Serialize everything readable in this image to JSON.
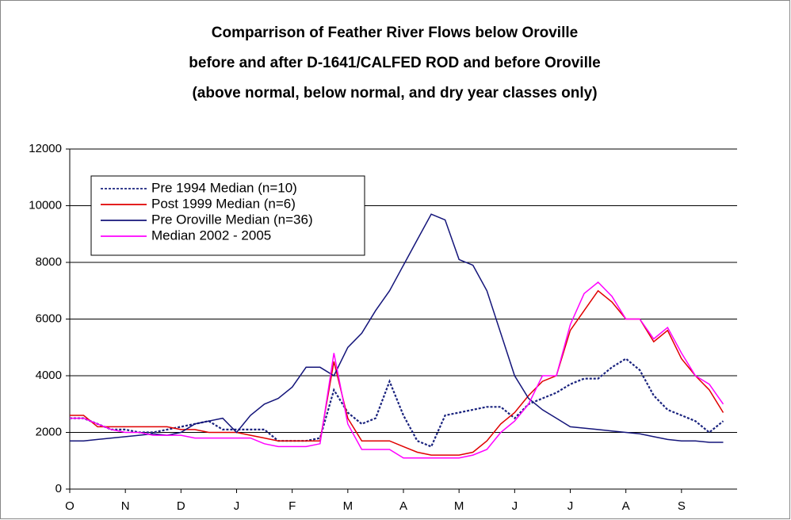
{
  "chart_data": {
    "type": "line",
    "title": "Comparrison of Feather River Flows below Oroville",
    "subtitle": [
      "before and after D-1641/CALFED ROD and before Oroville",
      "(above normal, below normal, and dry year classes only)"
    ],
    "categories": [
      "O",
      null,
      null,
      null,
      "N",
      null,
      null,
      null,
      "D",
      null,
      null,
      null,
      "J",
      null,
      null,
      null,
      "F",
      null,
      null,
      null,
      "M",
      null,
      null,
      null,
      "A",
      null,
      null,
      null,
      "M",
      null,
      null,
      null,
      "J",
      null,
      null,
      null,
      "J",
      null,
      null,
      null,
      "A",
      null,
      null,
      null,
      "S",
      null,
      null,
      null
    ],
    "ylim": [
      0,
      12000
    ],
    "yticks": [
      0,
      2000,
      4000,
      6000,
      8000,
      10000,
      12000
    ],
    "grid": true,
    "legend": "upper-left",
    "series": [
      {
        "name": "Pre 1994 Median (n=10)",
        "color": "#1a237e",
        "line_style": "dotted",
        "values": [
          2500,
          2500,
          2300,
          2100,
          2100,
          2000,
          2000,
          2100,
          2200,
          2300,
          2400,
          2100,
          2100,
          2100,
          2100,
          1700,
          1700,
          1700,
          1800,
          3500,
          2700,
          2300,
          2500,
          3800,
          2600,
          1700,
          1500,
          2600,
          2700,
          2800,
          2900,
          2900,
          2500,
          3000,
          3200,
          3400,
          3700,
          3900,
          3900,
          4300,
          4600,
          4200,
          3300,
          2800,
          2600,
          2400,
          2000,
          2400
        ]
      },
      {
        "name": "Post 1999 Median (n=6)",
        "color": "#e00000",
        "line_style": "solid",
        "values": [
          2600,
          2600,
          2200,
          2200,
          2200,
          2200,
          2200,
          2200,
          2100,
          2100,
          2000,
          2000,
          2000,
          1900,
          1800,
          1700,
          1700,
          1700,
          1700,
          4500,
          2500,
          1700,
          1700,
          1700,
          1500,
          1300,
          1200,
          1200,
          1200,
          1300,
          1700,
          2300,
          2700,
          3300,
          3800,
          4000,
          5600,
          6300,
          7000,
          6600,
          6000,
          6000,
          5200,
          5600,
          4600,
          4000,
          3500,
          2700
        ]
      },
      {
        "name": "Pre Oroville Median (n=36)",
        "color": "#14157a",
        "line_style": "solid",
        "values": [
          1700,
          1700,
          1750,
          1800,
          1850,
          1900,
          1950,
          1900,
          2000,
          2300,
          2400,
          2500,
          2000,
          2600,
          3000,
          3200,
          3600,
          4300,
          4300,
          4000,
          5000,
          5500,
          6300,
          7000,
          7900,
          8800,
          9700,
          9500,
          8100,
          7900,
          7000,
          5500,
          4000,
          3200,
          2800,
          2500,
          2200,
          2150,
          2100,
          2050,
          2000,
          1950,
          1850,
          1750,
          1700,
          1700,
          1650,
          1650
        ]
      },
      {
        "name": "Median 2002 - 2005",
        "color": "#ff00ff",
        "line_style": "solid",
        "values": [
          2500,
          2500,
          2300,
          2100,
          2000,
          2000,
          1900,
          1900,
          1900,
          1800,
          1800,
          1800,
          1800,
          1800,
          1600,
          1500,
          1500,
          1500,
          1600,
          4800,
          2300,
          1400,
          1400,
          1400,
          1100,
          1100,
          1100,
          1100,
          1100,
          1200,
          1400,
          2000,
          2400,
          3000,
          4000,
          4000,
          5800,
          6900,
          7300,
          6800,
          6000,
          6000,
          5300,
          5700,
          4800,
          4000,
          3700,
          3000
        ]
      }
    ]
  }
}
